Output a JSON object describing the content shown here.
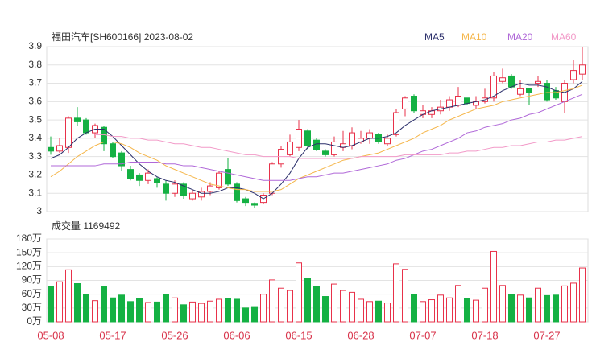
{
  "chart_data": [
    {
      "type": "candlestick",
      "title": "福田汽车[SH600166] 2023-08-02",
      "categories": [
        "05-08",
        null,
        null,
        null,
        null,
        null,
        null,
        "05-17",
        null,
        null,
        null,
        null,
        null,
        null,
        "05-26",
        null,
        null,
        null,
        null,
        null,
        null,
        "06-06",
        null,
        null,
        null,
        null,
        null,
        null,
        "06-15",
        null,
        null,
        null,
        null,
        null,
        null,
        "06-28",
        null,
        null,
        null,
        null,
        null,
        null,
        "07-07",
        null,
        null,
        null,
        null,
        null,
        null,
        "07-18",
        null,
        null,
        null,
        null,
        null,
        null,
        "07-27",
        null,
        null,
        null,
        null
      ],
      "open": [
        3.35,
        3.33,
        3.35,
        3.51,
        3.5,
        3.43,
        3.46,
        3.37,
        3.32,
        3.23,
        3.2,
        3.17,
        3.18,
        3.15,
        3.1,
        3.15,
        3.07,
        3.08,
        3.11,
        3.13,
        3.23,
        3.15,
        3.07,
        3.045,
        3.05,
        3.1,
        3.26,
        3.31,
        3.35,
        3.44,
        3.39,
        3.33,
        3.31,
        3.35,
        3.36,
        3.38,
        3.4,
        3.42,
        3.37,
        3.42,
        3.56,
        3.63,
        3.53,
        3.53,
        3.55,
        3.57,
        3.58,
        3.62,
        3.58,
        3.6,
        3.62,
        3.71,
        3.74,
        3.64,
        3.67,
        3.7,
        3.7,
        3.66,
        3.6,
        3.72,
        3.75
      ],
      "high": [
        3.41,
        3.4,
        3.52,
        3.57,
        3.51,
        3.48,
        3.47,
        3.38,
        3.33,
        3.25,
        3.21,
        3.23,
        3.19,
        3.17,
        3.17,
        3.16,
        3.12,
        3.13,
        3.16,
        3.22,
        3.29,
        3.16,
        3.08,
        3.05,
        3.1,
        3.27,
        3.36,
        3.42,
        3.5,
        3.45,
        3.4,
        3.34,
        3.41,
        3.44,
        3.46,
        3.44,
        3.45,
        3.43,
        3.42,
        3.56,
        3.63,
        3.64,
        3.58,
        3.57,
        3.61,
        3.63,
        3.68,
        3.62,
        3.63,
        3.67,
        3.76,
        3.78,
        3.75,
        3.72,
        3.67,
        3.74,
        3.72,
        3.68,
        3.72,
        3.83,
        3.9
      ],
      "low": [
        3.31,
        3.32,
        3.32,
        3.47,
        3.42,
        3.4,
        3.33,
        3.29,
        3.22,
        3.17,
        3.14,
        3.15,
        3.13,
        3.06,
        3.08,
        3.07,
        3.06,
        3.06,
        3.09,
        3.12,
        3.14,
        3.05,
        3.03,
        3.02,
        3.04,
        3.09,
        3.24,
        3.3,
        3.33,
        3.34,
        3.33,
        3.3,
        3.3,
        3.33,
        3.34,
        3.37,
        3.37,
        3.37,
        3.36,
        3.41,
        3.52,
        3.54,
        3.51,
        3.51,
        3.53,
        3.55,
        3.57,
        3.58,
        3.56,
        3.59,
        3.6,
        3.7,
        3.67,
        3.63,
        3.58,
        3.68,
        3.6,
        3.61,
        3.54,
        3.7,
        3.72
      ],
      "close": [
        3.33,
        3.36,
        3.51,
        3.49,
        3.43,
        3.47,
        3.37,
        3.3,
        3.25,
        3.18,
        3.17,
        3.21,
        3.16,
        3.1,
        3.15,
        3.09,
        3.1,
        3.11,
        3.14,
        3.21,
        3.15,
        3.06,
        3.05,
        3.035,
        3.09,
        3.26,
        3.34,
        3.38,
        3.45,
        3.36,
        3.34,
        3.31,
        3.38,
        3.37,
        3.43,
        3.4,
        3.43,
        3.38,
        3.4,
        3.54,
        3.62,
        3.55,
        3.55,
        3.55,
        3.57,
        3.61,
        3.63,
        3.59,
        3.6,
        3.62,
        3.74,
        3.73,
        3.68,
        3.67,
        3.65,
        3.71,
        3.61,
        3.62,
        3.7,
        3.77,
        3.8
      ],
      "series": [
        {
          "name": "MA5",
          "color": "#2b2f6b",
          "values": [
            3.29,
            3.31,
            3.35,
            3.4,
            3.43,
            3.45,
            3.45,
            3.41,
            3.36,
            3.31,
            3.26,
            3.22,
            3.19,
            3.17,
            3.16,
            3.14,
            3.12,
            3.1,
            3.1,
            3.11,
            3.13,
            3.13,
            3.12,
            3.1,
            3.07,
            3.1,
            3.15,
            3.21,
            3.29,
            3.35,
            3.37,
            3.37,
            3.36,
            3.35,
            3.36,
            3.38,
            3.4,
            3.4,
            3.41,
            3.43,
            3.47,
            3.5,
            3.53,
            3.55,
            3.56,
            3.57,
            3.58,
            3.59,
            3.6,
            3.61,
            3.63,
            3.66,
            3.68,
            3.7,
            3.69,
            3.69,
            3.68,
            3.66,
            3.65,
            3.67,
            3.71
          ]
        },
        {
          "name": "MA10",
          "color": "#f5b64a",
          "values": [
            3.19,
            3.22,
            3.26,
            3.3,
            3.33,
            3.36,
            3.38,
            3.38,
            3.37,
            3.35,
            3.32,
            3.3,
            3.28,
            3.25,
            3.23,
            3.21,
            3.19,
            3.17,
            3.15,
            3.14,
            3.13,
            3.12,
            3.12,
            3.11,
            3.11,
            3.11,
            3.12,
            3.15,
            3.18,
            3.2,
            3.22,
            3.24,
            3.26,
            3.28,
            3.29,
            3.3,
            3.31,
            3.32,
            3.34,
            3.36,
            3.38,
            3.4,
            3.43,
            3.45,
            3.47,
            3.5,
            3.52,
            3.54,
            3.56,
            3.57,
            3.58,
            3.6,
            3.61,
            3.62,
            3.63,
            3.64,
            3.65,
            3.65,
            3.66,
            3.67,
            3.69
          ]
        },
        {
          "name": "MA20",
          "color": "#b068d8",
          "values": [
            3.25,
            3.25,
            3.25,
            3.25,
            3.25,
            3.25,
            3.26,
            3.26,
            3.26,
            3.27,
            3.27,
            3.27,
            3.27,
            3.26,
            3.26,
            3.25,
            3.25,
            3.24,
            3.23,
            3.22,
            3.21,
            3.2,
            3.19,
            3.18,
            3.17,
            3.17,
            3.17,
            3.17,
            3.18,
            3.19,
            3.19,
            3.2,
            3.21,
            3.21,
            3.22,
            3.23,
            3.24,
            3.25,
            3.26,
            3.28,
            3.29,
            3.31,
            3.33,
            3.34,
            3.36,
            3.38,
            3.4,
            3.43,
            3.44,
            3.46,
            3.47,
            3.48,
            3.5,
            3.51,
            3.53,
            3.54,
            3.56,
            3.58,
            3.6,
            3.62,
            3.64
          ]
        },
        {
          "name": "MA60",
          "color": "#f29ac8",
          "values": [
            null,
            null,
            null,
            null,
            null,
            3.42,
            3.42,
            3.41,
            3.41,
            3.4,
            3.4,
            3.39,
            3.39,
            3.38,
            3.37,
            3.37,
            3.36,
            3.35,
            3.35,
            3.34,
            3.33,
            3.32,
            3.31,
            3.31,
            3.3,
            3.3,
            3.3,
            3.3,
            3.29,
            3.29,
            3.29,
            3.29,
            3.29,
            3.29,
            3.29,
            3.3,
            3.3,
            3.3,
            3.3,
            3.3,
            3.31,
            3.31,
            3.31,
            3.31,
            3.31,
            3.32,
            3.32,
            3.33,
            3.33,
            3.34,
            3.35,
            3.35,
            3.36,
            3.36,
            3.37,
            3.38,
            3.38,
            3.39,
            3.39,
            3.4,
            3.41
          ]
        }
      ],
      "up_color": "#e8314a",
      "down_color": "#14b143",
      "ylim": [
        3,
        3.9
      ],
      "yticks": [
        3.9,
        3.8,
        3.7,
        3.6,
        3.5,
        3.4,
        3.3,
        3.2,
        3.1,
        3
      ],
      "grid": true
    },
    {
      "type": "bar",
      "title": "成交量 1169492",
      "values": [
        77,
        87,
        113,
        83,
        60,
        46,
        76,
        52,
        58,
        44,
        51,
        42,
        43,
        60,
        52,
        37,
        43,
        40,
        45,
        49,
        51,
        49,
        30,
        33,
        60,
        91,
        73,
        68,
        128,
        94,
        77,
        55,
        82,
        68,
        64,
        49,
        44,
        45,
        41,
        126,
        114,
        60,
        44,
        48,
        58,
        52,
        79,
        51,
        47,
        73,
        153,
        79,
        59,
        58,
        52,
        73,
        57,
        58,
        78,
        84,
        117
      ],
      "ylim": [
        0,
        180
      ],
      "yticks": [
        {
          "value": 180,
          "label": "180万"
        },
        {
          "value": 150,
          "label": "150万"
        },
        {
          "value": 120,
          "label": "120万"
        },
        {
          "value": 90,
          "label": "90万"
        },
        {
          "value": 60,
          "label": "60万"
        },
        {
          "value": 30,
          "label": "30万"
        },
        {
          "value": 0,
          "label": "0万"
        }
      ],
      "grid": true
    }
  ]
}
